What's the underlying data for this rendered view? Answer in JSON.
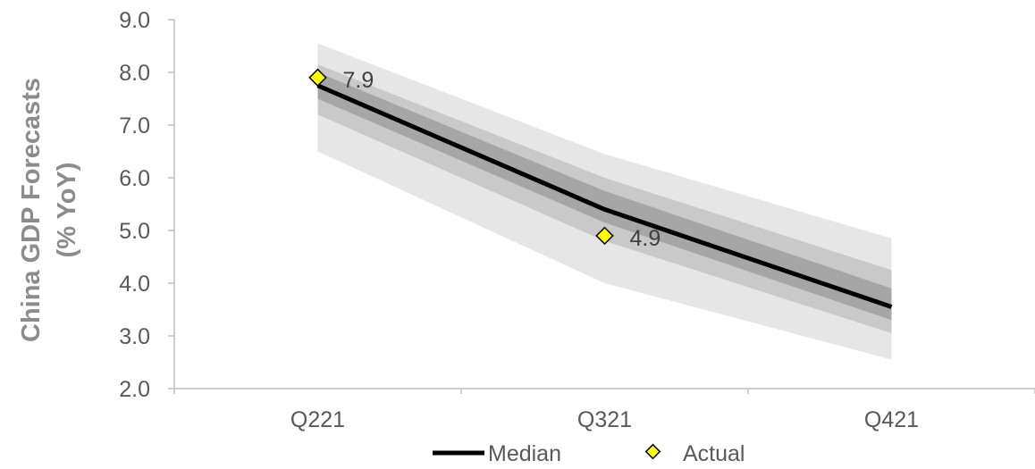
{
  "chart_data": {
    "type": "line",
    "title": "",
    "ylabel_line1": "China GDP Forecasts",
    "ylabel_line2": "(% YoY)",
    "xlabel": "",
    "categories": [
      "Q221",
      "Q321",
      "Q421"
    ],
    "ylim": [
      2.0,
      9.0
    ],
    "y_ticks": [
      "2.0",
      "3.0",
      "4.0",
      "5.0",
      "6.0",
      "7.0",
      "8.0",
      "9.0"
    ],
    "grid": false,
    "legend_position": "bottom",
    "fan_bands": [
      {
        "lower": [
          6.5,
          4.0,
          2.55
        ],
        "upper": [
          8.55,
          6.45,
          4.85
        ],
        "color": "#e6e6e6"
      },
      {
        "lower": [
          7.2,
          4.8,
          3.05
        ],
        "upper": [
          8.15,
          6.0,
          4.25
        ],
        "color": "#c9c9c9"
      },
      {
        "lower": [
          7.5,
          5.15,
          3.3
        ],
        "upper": [
          8.0,
          5.75,
          3.9
        ],
        "color": "#a6a6a6"
      }
    ],
    "series": [
      {
        "name": "Median",
        "type": "line",
        "color": "#000000",
        "values": [
          7.75,
          5.4,
          3.55
        ]
      },
      {
        "name": "Actual",
        "type": "marker",
        "color": "#ffff00",
        "values": [
          7.9,
          4.9,
          null
        ],
        "labels": [
          "7.9",
          "4.9",
          ""
        ]
      }
    ]
  }
}
